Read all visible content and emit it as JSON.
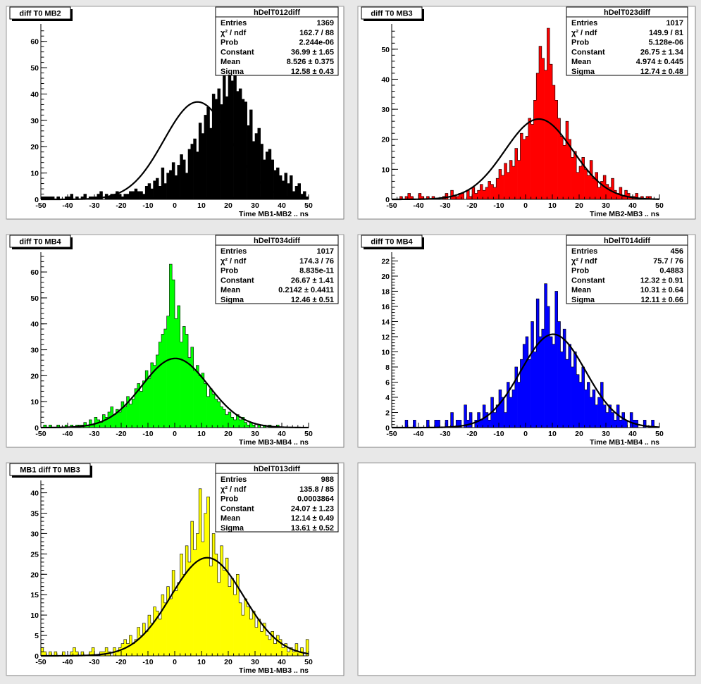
{
  "chart_data": [
    {
      "type": "bar",
      "pad_title": "diff T0 MB2",
      "stats_title": "hDelT012diff",
      "stats": [
        {
          "label": "Entries",
          "value": "1369"
        },
        {
          "label": "χ² / ndf",
          "value": "162.7 / 88"
        },
        {
          "label": "Prob",
          "value": "2.244e-06"
        },
        {
          "label": "Constant",
          "value": "36.99 ± 1.65"
        },
        {
          "label": "Mean",
          "value": "8.526 ± 0.375"
        },
        {
          "label": "Sigma",
          "value": "12.58 ± 0.43"
        }
      ],
      "xlabel": "Time MB1-MB2  ..  ns",
      "xlim": [
        -50,
        50
      ],
      "ylim": [
        0,
        65
      ],
      "xticks": [
        -50,
        -40,
        -30,
        -20,
        -10,
        0,
        10,
        20,
        30,
        40,
        50
      ],
      "yticks": [
        0,
        10,
        20,
        30,
        40,
        50,
        60
      ],
      "color": "#000000",
      "fit": {
        "constant": 36.99,
        "mean": 8.526,
        "sigma": 12.58
      },
      "bin_width": 1,
      "values": [
        1,
        1,
        1,
        1,
        1,
        0,
        1,
        0,
        0,
        1,
        1,
        2,
        0,
        1,
        0,
        1,
        2,
        0,
        1,
        1,
        1,
        2,
        3,
        0,
        2,
        1,
        2,
        2,
        3,
        2,
        1,
        2,
        2,
        3,
        3,
        4,
        3,
        3,
        2,
        5,
        6,
        4,
        7,
        8,
        5,
        12,
        6,
        10,
        11,
        14,
        9,
        13,
        17,
        15,
        10,
        19,
        21,
        23,
        18,
        29,
        25,
        32,
        35,
        27,
        40,
        38,
        42,
        36,
        49,
        39,
        53,
        45,
        48,
        41,
        42,
        38,
        37,
        28,
        34,
        22,
        25,
        27,
        21,
        15,
        18,
        19,
        15,
        11,
        12,
        9,
        7,
        10,
        6,
        9,
        3,
        5,
        6,
        2,
        3,
        1
      ]
    },
    {
      "type": "bar",
      "pad_title": "diff T0 MB3",
      "stats_title": "hDelT023diff",
      "stats": [
        {
          "label": "Entries",
          "value": "1017"
        },
        {
          "label": "χ² / ndf",
          "value": "149.9 / 81"
        },
        {
          "label": "Prob",
          "value": "5.128e-06"
        },
        {
          "label": "Constant",
          "value": "26.75 ± 1.34"
        },
        {
          "label": "Mean",
          "value": "4.974 ± 0.445"
        },
        {
          "label": "Sigma",
          "value": "12.74 ± 0.48"
        }
      ],
      "xlabel": "Time MB2-MB3  ..  ns",
      "xlim": [
        -50,
        50
      ],
      "ylim": [
        0,
        57
      ],
      "xticks": [
        -50,
        -40,
        -30,
        -20,
        -10,
        0,
        10,
        20,
        30,
        40,
        50
      ],
      "yticks": [
        0,
        10,
        20,
        30,
        40,
        50
      ],
      "color": "#ff0000",
      "fit": {
        "constant": 26.75,
        "mean": 4.974,
        "sigma": 12.74
      },
      "bin_width": 1,
      "values": [
        0,
        0,
        0,
        1,
        0,
        1,
        2,
        1,
        0,
        0,
        2,
        1,
        0,
        1,
        0,
        1,
        0,
        0,
        0,
        1,
        2,
        0,
        3,
        1,
        1,
        2,
        2,
        0,
        3,
        1,
        4,
        2,
        3,
        5,
        3,
        4,
        6,
        5,
        4,
        7,
        10,
        8,
        12,
        9,
        13,
        11,
        17,
        13,
        22,
        20,
        21,
        27,
        25,
        33,
        42,
        51,
        47,
        43,
        57,
        45,
        38,
        33,
        27,
        21,
        18,
        26,
        20,
        14,
        16,
        9,
        11,
        14,
        10,
        8,
        13,
        7,
        9,
        4,
        6,
        8,
        5,
        4,
        7,
        3,
        2,
        4,
        1,
        3,
        2,
        1,
        1,
        2,
        0,
        1,
        0,
        1,
        1,
        0,
        0,
        0
      ]
    },
    {
      "type": "bar",
      "pad_title": "diff T0 MB4",
      "stats_title": "hDelT034diff",
      "stats": [
        {
          "label": "Entries",
          "value": "1017"
        },
        {
          "label": "χ² / ndf",
          "value": "174.3 / 76"
        },
        {
          "label": "Prob",
          "value": "8.835e-11"
        },
        {
          "label": "Constant",
          "value": "26.67 ± 1.41"
        },
        {
          "label": "Mean",
          "value": "0.2142 ± 0.4411"
        },
        {
          "label": "Sigma",
          "value": "12.46 ± 0.51"
        }
      ],
      "xlabel": "Time MB3-MB4  ..  ns",
      "xlim": [
        -50,
        50
      ],
      "ylim": [
        0,
        66
      ],
      "xticks": [
        -50,
        -40,
        -30,
        -20,
        -10,
        0,
        10,
        20,
        30,
        40,
        50
      ],
      "yticks": [
        0,
        10,
        20,
        30,
        40,
        50,
        60
      ],
      "color": "#00ff00",
      "fit": {
        "constant": 26.67,
        "mean": 0.2142,
        "sigma": 12.46
      },
      "bin_width": 1,
      "values": [
        0,
        1,
        0,
        1,
        0,
        0,
        1,
        0,
        0,
        1,
        0,
        1,
        0,
        1,
        1,
        1,
        2,
        1,
        3,
        1,
        4,
        3,
        2,
        5,
        4,
        6,
        8,
        5,
        7,
        6,
        10,
        8,
        12,
        9,
        11,
        15,
        17,
        14,
        18,
        22,
        19,
        25,
        24,
        28,
        33,
        36,
        38,
        43,
        63,
        57,
        42,
        47,
        33,
        39,
        36,
        27,
        31,
        22,
        24,
        20,
        21,
        17,
        12,
        15,
        13,
        11,
        10,
        8,
        7,
        5,
        6,
        4,
        3,
        5,
        3,
        4,
        2,
        1,
        2,
        1,
        0,
        1,
        0,
        1,
        0,
        1,
        0,
        0,
        1,
        0,
        0,
        0,
        0,
        0,
        0,
        0,
        0,
        0,
        0,
        0
      ]
    },
    {
      "type": "bar",
      "pad_title": "diff T0 MB4",
      "stats_title": "hDelT014diff",
      "stats": [
        {
          "label": "Entries",
          "value": "456"
        },
        {
          "label": "χ² / ndf",
          "value": "75.7 / 76"
        },
        {
          "label": "Prob",
          "value": "0.4883"
        },
        {
          "label": "Constant",
          "value": "12.32 ± 0.91"
        },
        {
          "label": "Mean",
          "value": "10.31 ± 0.64"
        },
        {
          "label": "Sigma",
          "value": "12.11 ± 0.66"
        }
      ],
      "xlabel": "Time MB1-MB4  ..  ns",
      "xlim": [
        -50,
        50
      ],
      "ylim": [
        0,
        22.6
      ],
      "xticks": [
        -50,
        -40,
        -30,
        -20,
        -10,
        0,
        10,
        20,
        30,
        40,
        50
      ],
      "yticks": [
        0,
        2,
        4,
        6,
        8,
        10,
        12,
        14,
        16,
        18,
        20,
        22
      ],
      "color": "#0000ff",
      "fit": {
        "constant": 12.32,
        "mean": 10.31,
        "sigma": 12.11
      },
      "bin_width": 1,
      "values": [
        0,
        0,
        0,
        0,
        0,
        1,
        0,
        0,
        1,
        0,
        0,
        0,
        0,
        1,
        0,
        0,
        1,
        1,
        0,
        0,
        1,
        0,
        2,
        0,
        1,
        1,
        0,
        3,
        1,
        2,
        0,
        1,
        2,
        1,
        3,
        2,
        1,
        4,
        2,
        3,
        5,
        4,
        2,
        6,
        4,
        5,
        8,
        6,
        9,
        11,
        12,
        9,
        14,
        10,
        17,
        12,
        13,
        19,
        16,
        12,
        11,
        18,
        14,
        10,
        13,
        9,
        11,
        8,
        10,
        7,
        6,
        8,
        5,
        6,
        4,
        5,
        3,
        4,
        6,
        3,
        2,
        3,
        2,
        1,
        3,
        1,
        2,
        1,
        0,
        2,
        1,
        1,
        0,
        0,
        1,
        0,
        0,
        1,
        0,
        0
      ]
    },
    {
      "type": "bar",
      "pad_title": "MB1 diff T0 MB3",
      "stats_title": "hDelT013diff",
      "stats": [
        {
          "label": "Entries",
          "value": "988"
        },
        {
          "label": "χ² / ndf",
          "value": "135.8 / 85"
        },
        {
          "label": "Prob",
          "value": "0.0003864"
        },
        {
          "label": "Constant",
          "value": "24.07 ± 1.23"
        },
        {
          "label": "Mean",
          "value": "12.14 ± 0.49"
        },
        {
          "label": "Sigma",
          "value": "13.61 ± 0.52"
        }
      ],
      "xlabel": "Time MB1-MB3  ..  ns",
      "xlim": [
        -50,
        50
      ],
      "ylim": [
        0,
        42
      ],
      "xticks": [
        -50,
        -40,
        -30,
        -20,
        -10,
        0,
        10,
        20,
        30,
        40,
        50
      ],
      "yticks": [
        0,
        5,
        10,
        15,
        20,
        25,
        30,
        35,
        40
      ],
      "color": "#ffff00",
      "fit": {
        "constant": 24.07,
        "mean": 12.14,
        "sigma": 13.61
      },
      "bin_width": 1,
      "values": [
        2,
        1,
        0,
        1,
        0,
        1,
        0,
        0,
        1,
        0,
        0,
        1,
        2,
        1,
        0,
        1,
        0,
        0,
        1,
        2,
        0,
        0,
        1,
        1,
        2,
        1,
        0,
        2,
        1,
        2,
        3,
        4,
        3,
        5,
        3,
        4,
        7,
        5,
        8,
        6,
        10,
        8,
        12,
        11,
        9,
        15,
        13,
        17,
        14,
        21,
        16,
        18,
        25,
        20,
        27,
        23,
        33,
        26,
        30,
        41,
        28,
        35,
        39,
        22,
        30,
        25,
        18,
        27,
        21,
        24,
        17,
        19,
        15,
        20,
        13,
        10,
        14,
        12,
        9,
        11,
        7,
        9,
        6,
        8,
        5,
        4,
        6,
        3,
        5,
        4,
        2,
        3,
        1,
        2,
        1,
        3,
        1,
        2,
        0,
        4
      ]
    }
  ]
}
